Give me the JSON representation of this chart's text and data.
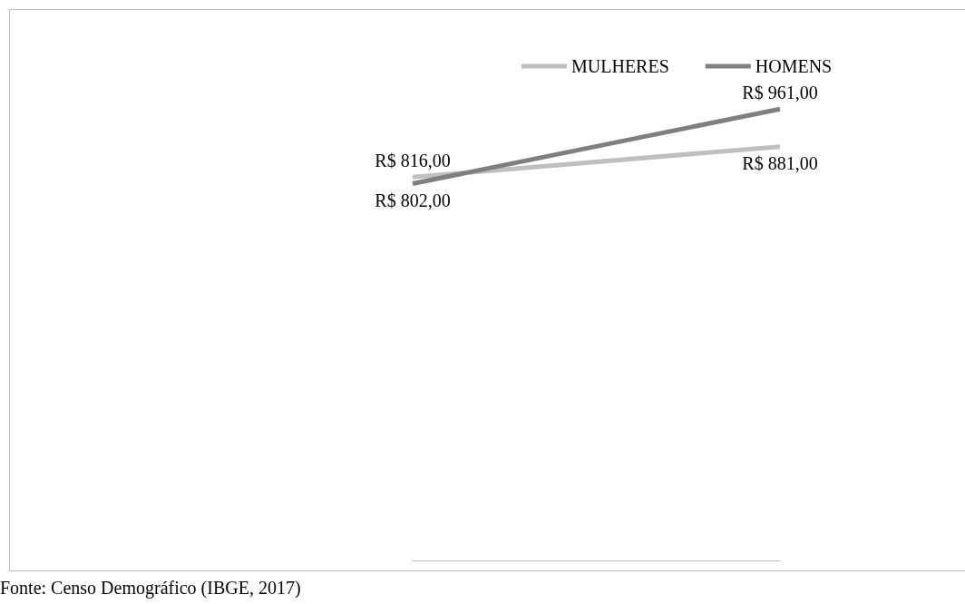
{
  "chart_data": {
    "type": "line",
    "categories": [
      null,
      null
    ],
    "series": [
      {
        "name": "MULHERES",
        "color": "#bfbfbf",
        "values": [
          816,
          881
        ],
        "value_labels": [
          "R$ 816,00",
          "R$ 881,00"
        ]
      },
      {
        "name": "HOMENS",
        "color": "#7f7f7f",
        "values": [
          802,
          961
        ],
        "value_labels": [
          "R$ 802,00",
          "R$ 961,00"
        ]
      }
    ],
    "annotations": [
      "Fonte: Censo Demográfico (IBGE, 2017)"
    ],
    "legend": "top",
    "marker": "none",
    "line_style": "solid",
    "grid": false,
    "tick_labels": false
  }
}
